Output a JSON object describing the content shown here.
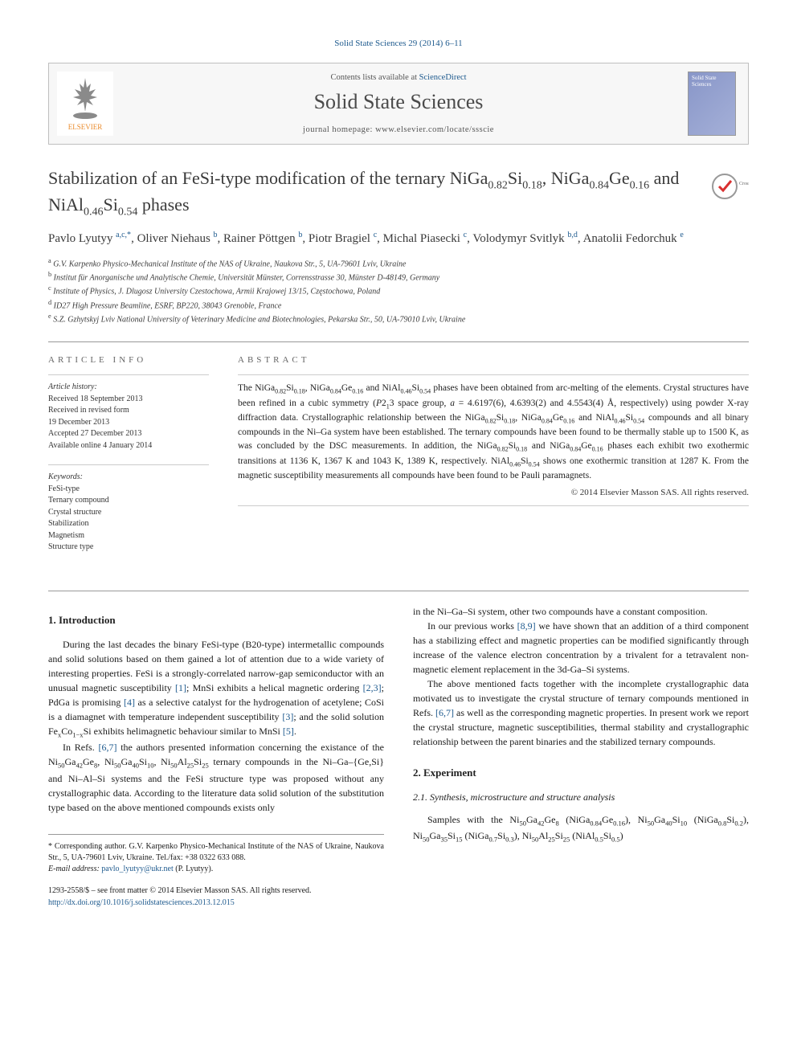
{
  "citation": "Solid State Sciences 29 (2014) 6–11",
  "header": {
    "contents_prefix": "Contents lists available at ",
    "contents_link": "ScienceDirect",
    "journal_name": "Solid State Sciences",
    "homepage_label": "journal homepage: ",
    "homepage_url": "www.elsevier.com/locate/ssscie",
    "cover_text": "Solid\nState\nSciences"
  },
  "title_html": "Stabilization of an FeSi-type modification of the ternary NiGa<sub>0.82</sub>Si<sub>0.18</sub>, NiGa<sub>0.84</sub>Ge<sub>0.16</sub> and NiAl<sub>0.46</sub>Si<sub>0.54</sub> phases",
  "authors_html": "Pavlo Lyutyy <sup>a,c,*</sup>, Oliver Niehaus <sup>b</sup>, Rainer Pöttgen <sup>b</sup>, Piotr Bragiel <sup>c</sup>, Michal Piasecki <sup>c</sup>, Volodymyr Svitlyk <sup>b,d</sup>, Anatolii Fedorchuk <sup>e</sup>",
  "affiliations": [
    {
      "sup": "a",
      "text": "G.V. Karpenko Physico-Mechanical Institute of the NAS of Ukraine, Naukova Str., 5, UA-79601 Lviv, Ukraine"
    },
    {
      "sup": "b",
      "text": "Institut für Anorganische und Analytische Chemie, Universität Münster, Corrensstrasse 30, Münster D-48149, Germany"
    },
    {
      "sup": "c",
      "text": "Institute of Physics, J. Dlugosz University Czestochowa, Armii Krajowej 13/15, Częstochowa, Poland"
    },
    {
      "sup": "d",
      "text": "ID27 High Pressure Beamline, ESRF, BP220, 38043 Grenoble, France"
    },
    {
      "sup": "e",
      "text": "S.Z. Gzhytskyj Lviv National University of Veterinary Medicine and Biotechnologies, Pekarska Str., 50, UA-79010 Lviv, Ukraine"
    }
  ],
  "article_info": {
    "label": "ARTICLE INFO",
    "history_label": "Article history:",
    "history": [
      "Received 18 September 2013",
      "Received in revised form",
      "19 December 2013",
      "Accepted 27 December 2013",
      "Available online 4 January 2014"
    ],
    "keywords_label": "Keywords:",
    "keywords": [
      "FeSi-type",
      "Ternary compound",
      "Crystal structure",
      "Stabilization",
      "Magnetism",
      "Structure type"
    ]
  },
  "abstract": {
    "label": "ABSTRACT",
    "text_html": "The NiGa<sub>0.82</sub>Si<sub>0.18</sub>, NiGa<sub>0.84</sub>Ge<sub>0.16</sub> and NiAl<sub>0.46</sub>Si<sub>0.54</sub> phases have been obtained from arc-melting of the elements. Crystal structures have been refined in a cubic symmetry (<i>P</i>2<sub>1</sub>3 space group, <i>a</i> = 4.6197(6), 4.6393(2) and 4.5543(4) Å, respectively) using powder X-ray diffraction data. Crystallographic relationship between the NiGa<sub>0.82</sub>Si<sub>0.18</sub>, NiGa<sub>0.84</sub>Ge<sub>0.16</sub> and NiAl<sub>0.46</sub>Si<sub>0.54</sub> compounds and all binary compounds in the Ni–Ga system have been established. The ternary compounds have been found to be thermally stable up to 1500 K, as was concluded by the DSC measurements. In addition, the NiGa<sub>0.82</sub>Si<sub>0.18</sub> and NiGa<sub>0.84</sub>Ge<sub>0.16</sub> phases each exhibit two exothermic transitions at 1136 K, 1367 K and 1043 K, 1389 K, respectively. NiAl<sub>0.46</sub>Si<sub>0.54</sub> shows one exothermic transition at 1287 K. From the magnetic susceptibility measurements all compounds have been found to be Pauli paramagnets.",
    "copyright": "© 2014 Elsevier Masson SAS. All rights reserved."
  },
  "body": {
    "intro_heading": "1. Introduction",
    "intro_p1_html": "During the last decades the binary FeSi-type (B20-type) intermetallic compounds and solid solutions based on them gained a lot of attention due to a wide variety of interesting properties. FeSi is a strongly-correlated narrow-gap semiconductor with an unusual magnetic susceptibility <span class=\"ref-link\">[1]</span>; MnSi exhibits a helical magnetic ordering <span class=\"ref-link\">[2,3]</span>; PdGa is promising <span class=\"ref-link\">[4]</span> as a selective catalyst for the hydrogenation of acetylene; CoSi is a diamagnet with temperature independent susceptibility <span class=\"ref-link\">[3]</span>; and the solid solution Fe<sub>x</sub>Co<sub>1−x</sub>Si exhibits helimagnetic behaviour similar to MnSi <span class=\"ref-link\">[5]</span>.",
    "intro_p2_html": "In Refs. <span class=\"ref-link\">[6,7]</span> the authors presented information concerning the existance of the Ni<sub>50</sub>Ga<sub>42</sub>Ge<sub>8</sub>, Ni<sub>50</sub>Ga<sub>40</sub>Si<sub>10</sub>, Ni<sub>50</sub>Al<sub>25</sub>Si<sub>25</sub> ternary compounds in the Ni–Ga–{Ge,Si} and Ni–Al–Si systems and the FeSi structure type was proposed without any crystallographic data. According to the literature data solid solution of the substitution type based on the above mentioned compounds exists only",
    "right_p1_html": "in the Ni–Ga–Si system, other two compounds have a constant composition.",
    "right_p2_html": "In our previous works <span class=\"ref-link\">[8,9]</span> we have shown that an addition of a third component has a stabilizing effect and magnetic properties can be modified significantly through increase of the valence electron concentration by a trivalent for a tetravalent non-magnetic element replacement in the 3d-Ga–Si systems.",
    "right_p3_html": "The above mentioned facts together with the incomplete crystallographic data motivated us to investigate the crystal structure of ternary compounds mentioned in Refs. <span class=\"ref-link\">[6,7]</span> as well as the corresponding magnetic properties. In present work we report the crystal structure, magnetic susceptibilities, thermal stability and crystallographic relationship between the parent binaries and the stabilized ternary compounds.",
    "exp_heading": "2. Experiment",
    "exp_sub": "2.1. Synthesis, microstructure and structure analysis",
    "exp_p1_html": "Samples with the Ni<sub>50</sub>Ga<sub>42</sub>Ge<sub>8</sub> (NiGa<sub>0.84</sub>Ge<sub>0.16</sub>), Ni<sub>50</sub>Ga<sub>40</sub>Si<sub>10</sub> (NiGa<sub>0.8</sub>Si<sub>0.2</sub>), Ni<sub>50</sub>Ga<sub>35</sub>Si<sub>15</sub> (NiGa<sub>0.7</sub>Si<sub>0.3</sub>), Ni<sub>50</sub>Al<sub>25</sub>Si<sub>25</sub> (NiAl<sub>0.5</sub>Si<sub>0.5</sub>)"
  },
  "footer": {
    "corr_html": "* Corresponding author. G.V. Karpenko Physico-Mechanical Institute of the NAS of Ukraine, Naukova Str., 5, UA-79601 Lviv, Ukraine. Tel./fax: +38 0322 633 088.",
    "email_label": "E-mail address: ",
    "email": "pavlo_lyutyy@ukr.net",
    "email_suffix": " (P. Lyutyy).",
    "issn_line": "1293-2558/$ – see front matter © 2014 Elsevier Masson SAS. All rights reserved.",
    "doi": "http://dx.doi.org/10.1016/j.solidstatesciences.2013.12.015"
  },
  "colors": {
    "link": "#1e5a8e",
    "text": "#1a1a1a",
    "border": "#bfbfbf",
    "header_bg": "#f7f7f7"
  },
  "elsevier_svg": {
    "tree_fill": "#8a8a8a",
    "text_fill": "#ea8b2c"
  }
}
